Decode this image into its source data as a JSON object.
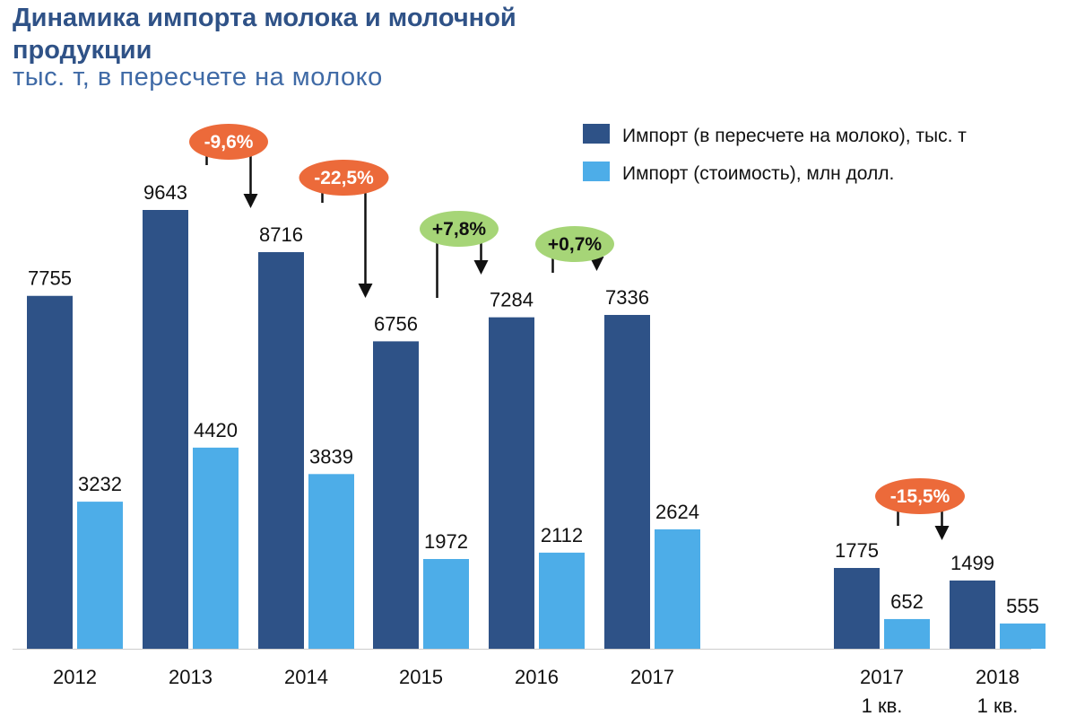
{
  "chart_data": {
    "type": "bar",
    "title": "Динамика импорта молока и молочной продукции",
    "subtitle": "тыс. т, в пересчете на молоко",
    "categories": [
      [
        "2012"
      ],
      [
        "2013"
      ],
      [
        "2014"
      ],
      [
        "2015"
      ],
      [
        "2016"
      ],
      [
        "2017"
      ],
      [
        "2017",
        "1 кв."
      ],
      [
        "2018",
        "1 кв."
      ]
    ],
    "series": [
      {
        "name": "Импорт (в пересчете на молоко), тыс. т",
        "color": "#2e5287",
        "values": [
          7755,
          9643,
          8716,
          6756,
          7284,
          7336,
          1775,
          1499
        ]
      },
      {
        "name": "Импорт (стоимость), млн долл.",
        "color": "#4dade8",
        "values": [
          3232,
          4420,
          3839,
          1972,
          2112,
          2624,
          652,
          555
        ]
      }
    ],
    "ylim": [
      0,
      9643
    ],
    "grid": false,
    "legend_position": "top-right",
    "annotations": [
      {
        "text": "-9,6%",
        "from": 1,
        "to": 2,
        "color": "#ec6a3a",
        "text_color": "#ffffff"
      },
      {
        "text": "-22,5%",
        "from": 2,
        "to": 3,
        "color": "#ec6a3a",
        "text_color": "#ffffff"
      },
      {
        "text": "+7,8%",
        "from": 3,
        "to": 4,
        "color": "#a6d577",
        "text_color": "#111111"
      },
      {
        "text": "+0,7%",
        "from": 4,
        "to": 5,
        "color": "#a6d577",
        "text_color": "#111111"
      },
      {
        "text": "-15,5%",
        "from": 6,
        "to": 7,
        "color": "#ec6a3a",
        "text_color": "#ffffff"
      }
    ]
  }
}
